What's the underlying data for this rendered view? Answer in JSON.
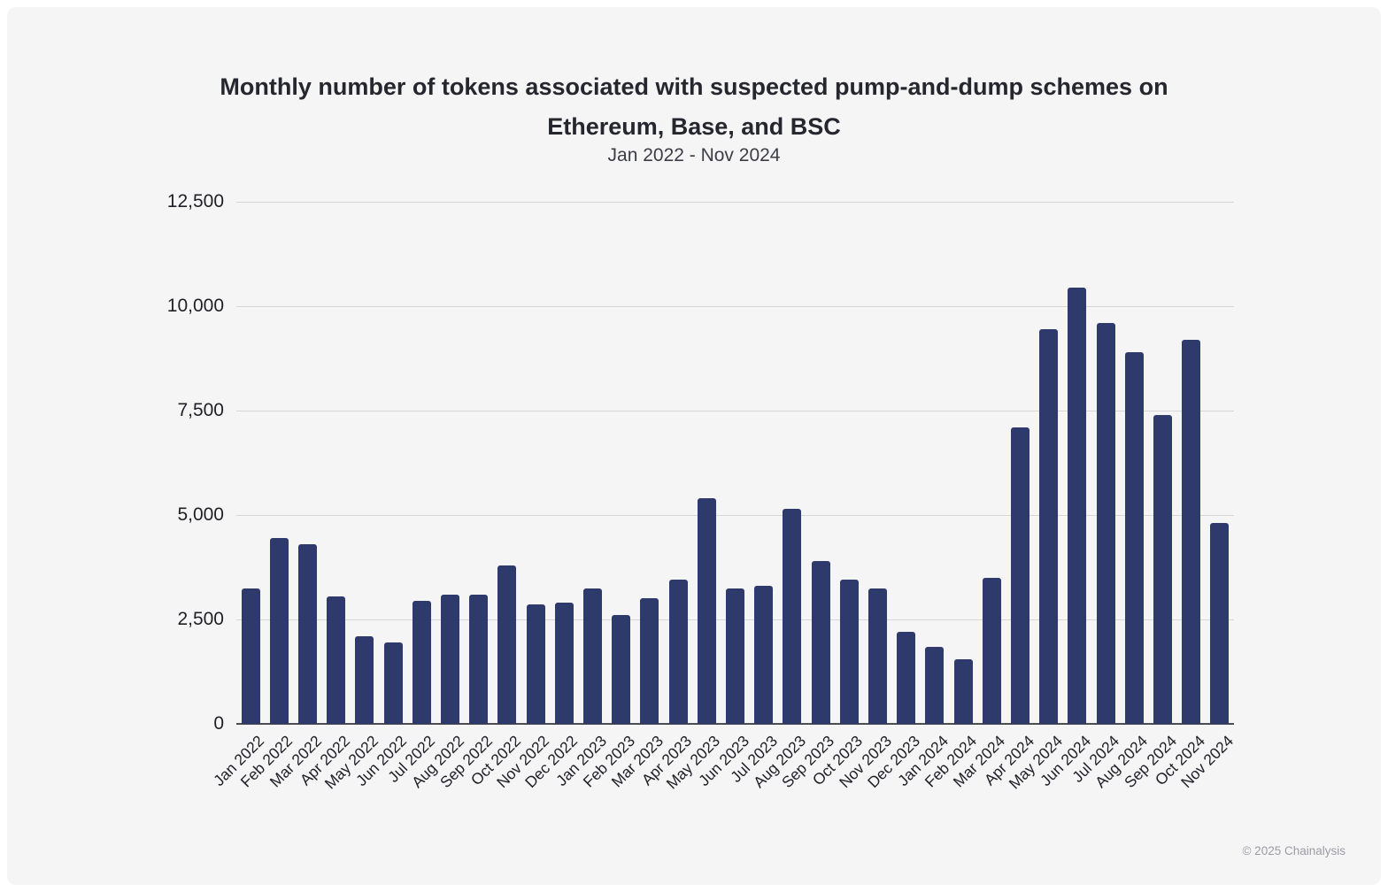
{
  "page": {
    "footer": "© 2025 Chainalysis"
  },
  "chart_data": {
    "type": "bar",
    "title": "Monthly number of tokens associated with suspected pump-and-dump schemes on Ethereum, Base, and BSC",
    "subtitle": "Jan 2022 - Nov 2024",
    "categories": [
      "Jan 2022",
      "Feb 2022",
      "Mar 2022",
      "Apr 2022",
      "May 2022",
      "Jun 2022",
      "Jul 2022",
      "Aug 2022",
      "Sep 2022",
      "Oct 2022",
      "Nov 2022",
      "Dec 2022",
      "Jan 2023",
      "Feb 2023",
      "Mar 2023",
      "Apr 2023",
      "May 2023",
      "Jun 2023",
      "Jul 2023",
      "Aug 2023",
      "Sep 2023",
      "Oct 2023",
      "Nov 2023",
      "Dec 2023",
      "Jan 2024",
      "Feb 2024",
      "Mar 2024",
      "Apr 2024",
      "May 2024",
      "Jun 2024",
      "Jul 2024",
      "Aug 2024",
      "Sep 2024",
      "Oct 2024",
      "Nov 2024"
    ],
    "values": [
      3250,
      4450,
      4300,
      3050,
      2100,
      1950,
      2950,
      3100,
      3100,
      3800,
      2850,
      2900,
      3250,
      2600,
      3000,
      3450,
      5400,
      3250,
      3300,
      5150,
      3900,
      3450,
      3250,
      2200,
      1850,
      1550,
      3500,
      7100,
      9450,
      10450,
      9600,
      8900,
      7400,
      9200,
      4800
    ],
    "xlabel": "",
    "ylabel": "",
    "ylim": [
      0,
      12500
    ],
    "y_ticks": [
      0,
      2500,
      5000,
      7500,
      10000,
      12500
    ],
    "y_tick_labels": [
      "0",
      "2,500",
      "5,000",
      "7,500",
      "10,000",
      "12,500"
    ],
    "grid": true,
    "legend": false,
    "bar_color": "#2d3a6b",
    "gridline_color": "#d6d6d9",
    "axis_color": "#4b4b52",
    "background_color": "#f5f5f6"
  }
}
